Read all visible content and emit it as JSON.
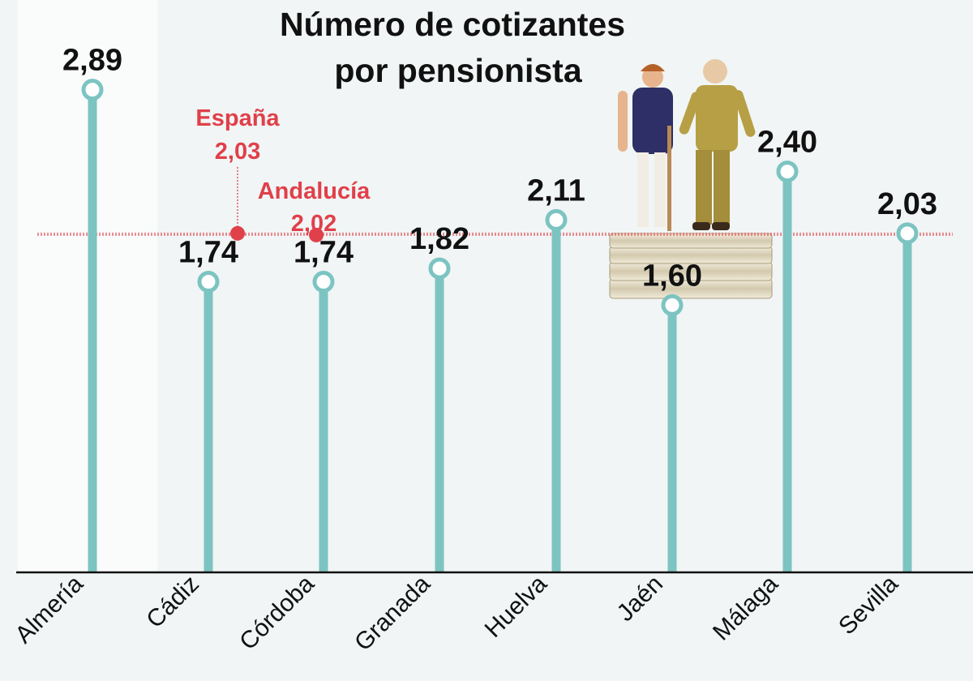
{
  "chart_data": {
    "type": "lollipop",
    "title": [
      "Número de cotizantes",
      "por pensionista"
    ],
    "categories": [
      "Almería",
      "Cádiz",
      "Córdoba",
      "Granada",
      "Huelva",
      "Jaén",
      "Málaga",
      "Sevilla"
    ],
    "value_labels": [
      "2,89",
      "1,74",
      "1,74",
      "1,82",
      "2,11",
      "1,60",
      "2,40",
      "2,03"
    ],
    "values": [
      2.89,
      1.74,
      1.74,
      1.82,
      2.11,
      1.6,
      2.4,
      2.03
    ],
    "ylim": [
      0,
      3.1
    ],
    "reference_lines": [
      {
        "name": "España",
        "value": 2.03,
        "label": "2,03"
      },
      {
        "name": "Andalucía",
        "value": 2.02,
        "label": "2,02"
      }
    ],
    "colors": {
      "stem": "#7cc4c1",
      "reference": "#e0404a",
      "text": "#111111",
      "background": "#f1f5f5",
      "highlight_band": "#fafcfc"
    },
    "illustration": "elderly-couple-on-coins"
  }
}
